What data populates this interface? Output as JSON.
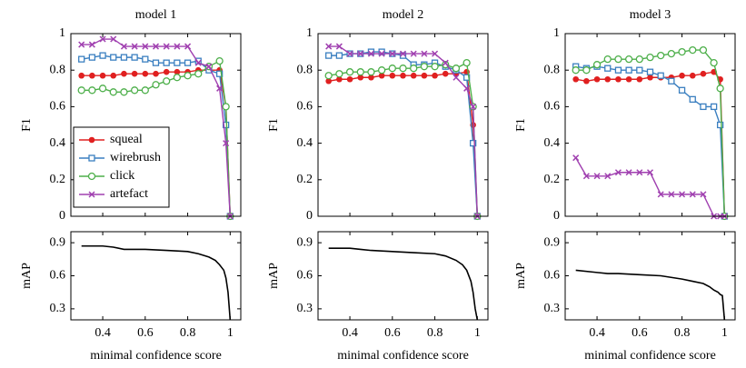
{
  "chart_data": [
    {
      "type": "line",
      "title": "model 1",
      "ylabel": "F1",
      "legend": "lower left",
      "xlim": [
        0.25,
        1.05
      ],
      "ylim": [
        0,
        1
      ],
      "xticks": [
        0.4,
        0.6,
        0.8,
        1
      ],
      "yticks": [
        0,
        0.2,
        0.4,
        0.6,
        0.8,
        1
      ],
      "x": [
        0.3,
        0.35,
        0.4,
        0.45,
        0.5,
        0.55,
        0.6,
        0.65,
        0.7,
        0.75,
        0.8,
        0.85,
        0.9,
        0.95,
        0.98,
        1
      ],
      "series": [
        {
          "name": "squeal",
          "color": "#e02020",
          "marker": "circle-filled",
          "values": [
            0.77,
            0.77,
            0.77,
            0.77,
            0.78,
            0.78,
            0.78,
            0.78,
            0.79,
            0.79,
            0.79,
            0.8,
            0.8,
            0.8,
            0.6,
            0
          ]
        },
        {
          "name": "wirebrush",
          "color": "#3a7fc0",
          "marker": "square-open",
          "values": [
            0.86,
            0.87,
            0.88,
            0.87,
            0.87,
            0.87,
            0.86,
            0.84,
            0.84,
            0.84,
            0.84,
            0.85,
            0.8,
            0.78,
            0.5,
            0
          ]
        },
        {
          "name": "click",
          "color": "#4daf4a",
          "marker": "circle-open",
          "values": [
            0.69,
            0.69,
            0.7,
            0.68,
            0.68,
            0.69,
            0.69,
            0.72,
            0.74,
            0.76,
            0.77,
            0.78,
            0.82,
            0.85,
            0.6,
            0
          ]
        },
        {
          "name": "artefact",
          "color": "#a040b0",
          "marker": "cross",
          "values": [
            0.94,
            0.94,
            0.97,
            0.97,
            0.93,
            0.93,
            0.93,
            0.93,
            0.93,
            0.93,
            0.93,
            0.84,
            0.82,
            0.7,
            0.4,
            0
          ]
        }
      ]
    },
    {
      "type": "line",
      "ylabel": "mAP",
      "xlabel": "minimal confidence score",
      "xlim": [
        0.25,
        1.05
      ],
      "ylim": [
        0.2,
        1
      ],
      "xticks": [
        0.4,
        0.6,
        0.8,
        1
      ],
      "yticks": [
        0.3,
        0.6,
        0.9
      ],
      "x": [
        0.3,
        0.4,
        0.45,
        0.5,
        0.6,
        0.7,
        0.8,
        0.85,
        0.9,
        0.93,
        0.95,
        0.97,
        0.98,
        0.99,
        1
      ],
      "series": [
        {
          "color": "#000000",
          "values": [
            0.87,
            0.87,
            0.86,
            0.84,
            0.84,
            0.83,
            0.82,
            0.8,
            0.77,
            0.74,
            0.7,
            0.65,
            0.58,
            0.45,
            0.2
          ]
        }
      ]
    },
    {
      "type": "line",
      "title": "model 2",
      "ylabel": "F1",
      "xlim": [
        0.25,
        1.05
      ],
      "ylim": [
        0,
        1
      ],
      "xticks": [
        0.4,
        0.6,
        0.8,
        1
      ],
      "yticks": [
        0,
        0.2,
        0.4,
        0.6,
        0.8,
        1
      ],
      "x": [
        0.3,
        0.35,
        0.4,
        0.45,
        0.5,
        0.55,
        0.6,
        0.65,
        0.7,
        0.75,
        0.8,
        0.85,
        0.9,
        0.95,
        0.98,
        1
      ],
      "series": [
        {
          "color": "#e02020",
          "marker": "circle-filled",
          "values": [
            0.74,
            0.75,
            0.75,
            0.76,
            0.76,
            0.77,
            0.77,
            0.77,
            0.77,
            0.77,
            0.77,
            0.78,
            0.78,
            0.79,
            0.5,
            0
          ]
        },
        {
          "color": "#3a7fc0",
          "marker": "square-open",
          "values": [
            0.88,
            0.88,
            0.89,
            0.89,
            0.9,
            0.9,
            0.89,
            0.88,
            0.83,
            0.83,
            0.84,
            0.82,
            0.8,
            0.76,
            0.4,
            0
          ]
        },
        {
          "color": "#4daf4a",
          "marker": "circle-open",
          "values": [
            0.77,
            0.78,
            0.79,
            0.79,
            0.79,
            0.8,
            0.81,
            0.81,
            0.81,
            0.82,
            0.82,
            0.83,
            0.81,
            0.84,
            0.6,
            0
          ]
        },
        {
          "color": "#a040b0",
          "marker": "cross",
          "values": [
            0.93,
            0.93,
            0.89,
            0.89,
            0.89,
            0.89,
            0.89,
            0.89,
            0.89,
            0.89,
            0.89,
            0.84,
            0.76,
            0.7,
            0.6,
            0
          ]
        }
      ]
    },
    {
      "type": "line",
      "ylabel": "mAP",
      "xlabel": "minimal confidence score",
      "xlim": [
        0.25,
        1.05
      ],
      "ylim": [
        0.2,
        1
      ],
      "xticks": [
        0.4,
        0.6,
        0.8,
        1
      ],
      "yticks": [
        0.3,
        0.6,
        0.9
      ],
      "x": [
        0.3,
        0.4,
        0.45,
        0.5,
        0.6,
        0.7,
        0.8,
        0.85,
        0.9,
        0.93,
        0.95,
        0.97,
        0.98,
        0.99,
        1
      ],
      "series": [
        {
          "color": "#000000",
          "values": [
            0.85,
            0.85,
            0.84,
            0.83,
            0.82,
            0.81,
            0.8,
            0.78,
            0.74,
            0.7,
            0.65,
            0.55,
            0.45,
            0.3,
            0.2
          ]
        }
      ]
    },
    {
      "type": "line",
      "title": "model 3",
      "ylabel": "F1",
      "xlim": [
        0.25,
        1.05
      ],
      "ylim": [
        0,
        1
      ],
      "xticks": [
        0.4,
        0.6,
        0.8,
        1
      ],
      "yticks": [
        0,
        0.2,
        0.4,
        0.6,
        0.8,
        1
      ],
      "x": [
        0.3,
        0.35,
        0.4,
        0.45,
        0.5,
        0.55,
        0.6,
        0.65,
        0.7,
        0.75,
        0.8,
        0.85,
        0.9,
        0.95,
        0.98,
        1
      ],
      "series": [
        {
          "color": "#e02020",
          "marker": "circle-filled",
          "values": [
            0.75,
            0.74,
            0.75,
            0.75,
            0.75,
            0.75,
            0.75,
            0.76,
            0.76,
            0.76,
            0.77,
            0.77,
            0.78,
            0.79,
            0.75,
            0
          ]
        },
        {
          "color": "#3a7fc0",
          "marker": "square-open",
          "values": [
            0.82,
            0.81,
            0.82,
            0.81,
            0.8,
            0.8,
            0.8,
            0.79,
            0.77,
            0.74,
            0.69,
            0.64,
            0.6,
            0.6,
            0.5,
            0
          ]
        },
        {
          "color": "#4daf4a",
          "marker": "circle-open",
          "values": [
            0.8,
            0.8,
            0.83,
            0.86,
            0.86,
            0.86,
            0.86,
            0.87,
            0.88,
            0.89,
            0.9,
            0.91,
            0.91,
            0.84,
            0.7,
            0
          ]
        },
        {
          "color": "#a040b0",
          "marker": "cross",
          "values": [
            0.32,
            0.22,
            0.22,
            0.22,
            0.24,
            0.24,
            0.24,
            0.24,
            0.12,
            0.12,
            0.12,
            0.12,
            0.12,
            0,
            0,
            0
          ]
        }
      ]
    },
    {
      "type": "line",
      "ylabel": "mAP",
      "xlabel": "minimal confidence score",
      "xlim": [
        0.25,
        1.05
      ],
      "ylim": [
        0.2,
        1
      ],
      "xticks": [
        0.4,
        0.6,
        0.8,
        1
      ],
      "yticks": [
        0.3,
        0.6,
        0.9
      ],
      "x": [
        0.3,
        0.4,
        0.45,
        0.5,
        0.6,
        0.7,
        0.8,
        0.85,
        0.9,
        0.93,
        0.95,
        0.97,
        0.98,
        0.99,
        1
      ],
      "series": [
        {
          "color": "#000000",
          "values": [
            0.65,
            0.63,
            0.62,
            0.62,
            0.61,
            0.6,
            0.57,
            0.55,
            0.53,
            0.5,
            0.47,
            0.45,
            0.43,
            0.42,
            0.2
          ]
        }
      ]
    }
  ]
}
